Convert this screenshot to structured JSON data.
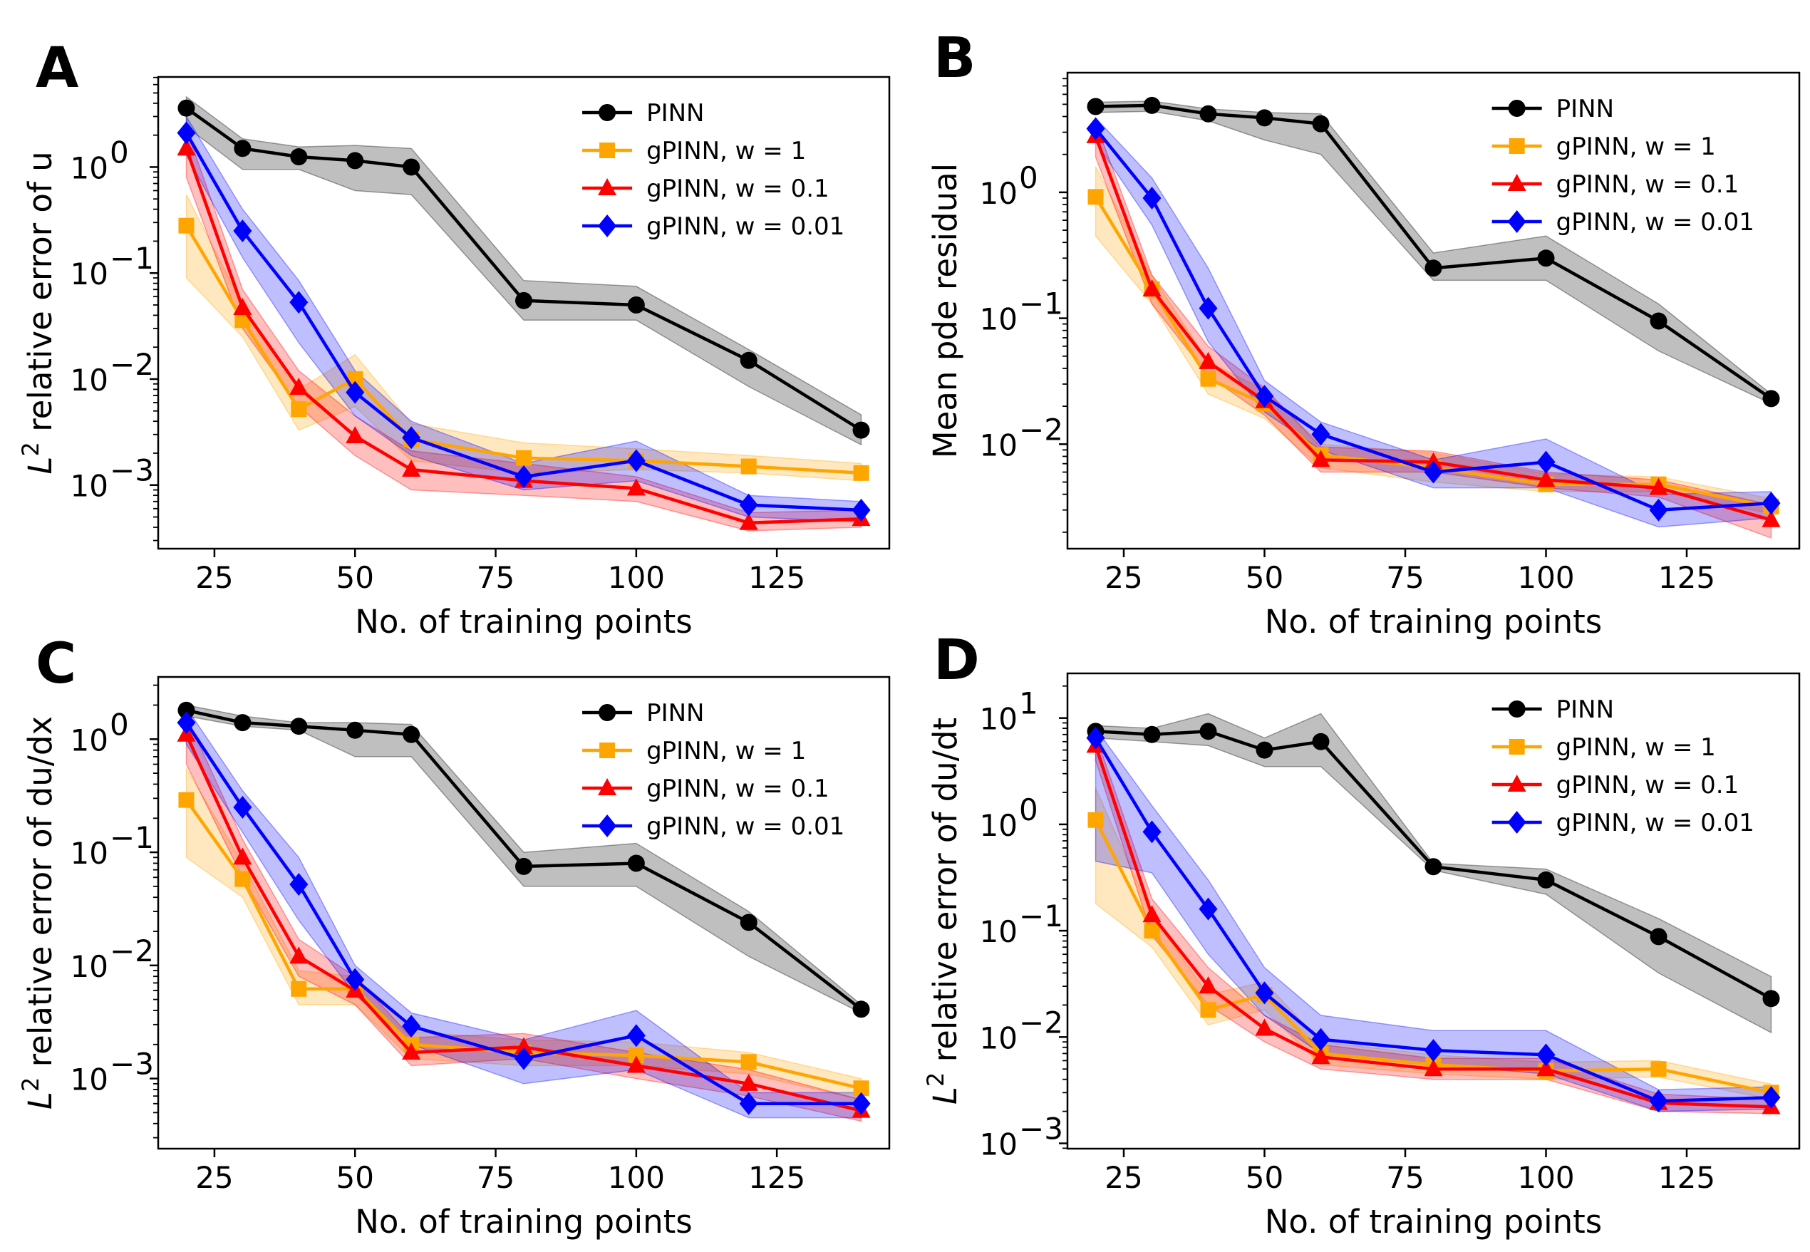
{
  "colors": {
    "PINN": "#000000",
    "gPINN, w = 1": "#ffa500",
    "gPINN, w = 0.1": "#ff0000",
    "gPINN, w = 0.01": "#0000ff"
  },
  "chart_data": [
    {
      "panel": "A",
      "type": "line",
      "yscale": "log",
      "xlabel": "No. of training points",
      "ylabel": "relative error of u",
      "ylabel_prefix": "L",
      "ylabel_sup": "2",
      "xlim": [
        15,
        145
      ],
      "ylim_log10": [
        -3.6,
        0.85
      ],
      "xticks": [
        25,
        50,
        75,
        100,
        125
      ],
      "yticks_exp": [
        -3,
        -2,
        -1,
        0
      ],
      "legend": "upper right",
      "x": [
        20,
        30,
        40,
        50,
        60,
        80,
        100,
        120,
        140
      ],
      "series": [
        {
          "name": "PINN",
          "marker": "circle",
          "values": [
            3.6,
            1.5,
            1.25,
            1.15,
            1.0,
            0.055,
            0.05,
            0.015,
            0.0033
          ],
          "lower": [
            2.4,
            0.95,
            0.95,
            0.6,
            0.55,
            0.036,
            0.036,
            0.0085,
            0.0024
          ],
          "upper": [
            4.6,
            1.85,
            1.55,
            1.6,
            1.5,
            0.085,
            0.075,
            0.019,
            0.0046
          ]
        },
        {
          "name": "gPINN, w = 1",
          "marker": "square",
          "values": [
            0.28,
            0.036,
            0.0052,
            0.01,
            0.0027,
            0.0018,
            0.0017,
            0.0015,
            0.0013
          ],
          "lower": [
            0.09,
            0.025,
            0.0033,
            0.0055,
            0.0017,
            0.0013,
            0.0014,
            0.0013,
            0.0011
          ],
          "upper": [
            0.55,
            0.05,
            0.008,
            0.017,
            0.0038,
            0.0025,
            0.0022,
            0.0019,
            0.0016
          ]
        },
        {
          "name": "gPINN, w = 0.1",
          "marker": "triangle",
          "values": [
            1.5,
            0.047,
            0.0083,
            0.0029,
            0.0014,
            0.0011,
            0.00093,
            0.00044,
            0.00048
          ],
          "lower": [
            0.8,
            0.03,
            0.0055,
            0.0019,
            0.0009,
            0.0008,
            0.0007,
            0.00037,
            0.0004
          ],
          "upper": [
            2.3,
            0.07,
            0.012,
            0.0045,
            0.0021,
            0.0016,
            0.0012,
            0.00055,
            0.00058
          ]
        },
        {
          "name": "gPINN, w = 0.01",
          "marker": "diamond",
          "values": [
            2.1,
            0.25,
            0.053,
            0.0075,
            0.0028,
            0.0012,
            0.0017,
            0.00065,
            0.00058
          ],
          "lower": [
            1.3,
            0.14,
            0.022,
            0.0045,
            0.0019,
            0.0009,
            0.0011,
            0.0005,
            0.00045
          ],
          "upper": [
            3.0,
            0.4,
            0.085,
            0.012,
            0.004,
            0.0016,
            0.0026,
            0.0008,
            0.0007
          ]
        }
      ]
    },
    {
      "panel": "B",
      "type": "line",
      "yscale": "log",
      "xlabel": "No. of training points",
      "ylabel": "Mean pde residual",
      "ylabel_prefix": "",
      "ylabel_sup": "",
      "xlim": [
        15,
        145
      ],
      "ylim_log10": [
        -2.83,
        0.95
      ],
      "xticks": [
        25,
        50,
        75,
        100,
        125
      ],
      "yticks_exp": [
        -2,
        -1,
        0
      ],
      "legend": "upper right",
      "x": [
        20,
        30,
        40,
        50,
        60,
        80,
        100,
        120,
        140
      ],
      "series": [
        {
          "name": "PINN",
          "marker": "circle",
          "values": [
            4.8,
            4.9,
            4.2,
            3.9,
            3.5,
            0.25,
            0.3,
            0.095,
            0.023
          ],
          "lower": [
            4.3,
            4.4,
            3.7,
            2.6,
            2.0,
            0.2,
            0.2,
            0.055,
            0.021
          ],
          "upper": [
            5.2,
            5.3,
            4.6,
            4.3,
            4.2,
            0.33,
            0.45,
            0.13,
            0.025
          ]
        },
        {
          "name": "gPINN, w = 1",
          "marker": "square",
          "values": [
            0.92,
            0.17,
            0.033,
            0.021,
            0.0082,
            0.0065,
            0.0048,
            0.0048,
            0.0032
          ],
          "lower": [
            0.45,
            0.13,
            0.025,
            0.016,
            0.0065,
            0.005,
            0.0042,
            0.0042,
            0.0028
          ],
          "upper": [
            1.6,
            0.22,
            0.045,
            0.027,
            0.01,
            0.0085,
            0.0058,
            0.0055,
            0.0037
          ]
        },
        {
          "name": "gPINN, w = 0.1",
          "marker": "triangle",
          "values": [
            2.8,
            0.17,
            0.045,
            0.022,
            0.0075,
            0.0072,
            0.0052,
            0.0045,
            0.0025
          ],
          "lower": [
            1.9,
            0.13,
            0.035,
            0.017,
            0.006,
            0.006,
            0.0045,
            0.0038,
            0.0018
          ],
          "upper": [
            3.6,
            0.22,
            0.06,
            0.028,
            0.0095,
            0.0088,
            0.006,
            0.0052,
            0.0033
          ]
        },
        {
          "name": "gPINN, w = 0.01",
          "marker": "diamond",
          "values": [
            3.2,
            0.9,
            0.12,
            0.024,
            0.012,
            0.006,
            0.0072,
            0.003,
            0.0034
          ],
          "lower": [
            2.5,
            0.55,
            0.065,
            0.018,
            0.009,
            0.0045,
            0.0045,
            0.0022,
            0.0026
          ],
          "upper": [
            3.9,
            1.3,
            0.25,
            0.032,
            0.015,
            0.0075,
            0.011,
            0.004,
            0.0042
          ]
        }
      ]
    },
    {
      "panel": "C",
      "type": "line",
      "yscale": "log",
      "xlabel": "No. of training points",
      "ylabel": "relative error of du/dx",
      "ylabel_prefix": "L",
      "ylabel_sup": "2",
      "xlim": [
        15,
        145
      ],
      "ylim_log10": [
        -3.62,
        0.55
      ],
      "xticks": [
        25,
        50,
        75,
        100,
        125
      ],
      "yticks_exp": [
        -3,
        -2,
        -1,
        0
      ],
      "legend": "upper right",
      "x": [
        20,
        30,
        40,
        50,
        60,
        80,
        100,
        120,
        140
      ],
      "series": [
        {
          "name": "PINN",
          "marker": "circle",
          "values": [
            1.8,
            1.4,
            1.3,
            1.2,
            1.1,
            0.075,
            0.08,
            0.024,
            0.0041
          ],
          "lower": [
            1.6,
            1.3,
            1.2,
            0.7,
            0.7,
            0.05,
            0.05,
            0.012,
            0.0038
          ],
          "upper": [
            2.0,
            1.6,
            1.4,
            1.4,
            1.35,
            0.1,
            0.12,
            0.03,
            0.0045
          ]
        },
        {
          "name": "gPINN, w = 1",
          "marker": "square",
          "values": [
            0.29,
            0.058,
            0.0062,
            0.0062,
            0.002,
            0.0017,
            0.0016,
            0.0014,
            0.00082
          ],
          "lower": [
            0.09,
            0.04,
            0.0045,
            0.0045,
            0.0015,
            0.0013,
            0.0013,
            0.0011,
            0.00065
          ],
          "upper": [
            0.55,
            0.08,
            0.009,
            0.008,
            0.0026,
            0.0022,
            0.0021,
            0.0017,
            0.001
          ]
        },
        {
          "name": "gPINN, w = 0.1",
          "marker": "triangle",
          "values": [
            1.1,
            0.09,
            0.012,
            0.006,
            0.0017,
            0.0019,
            0.0013,
            0.0009,
            0.00052
          ],
          "lower": [
            0.6,
            0.06,
            0.008,
            0.0045,
            0.0013,
            0.0015,
            0.001,
            0.0007,
            0.00042
          ],
          "upper": [
            1.6,
            0.13,
            0.017,
            0.008,
            0.0023,
            0.0025,
            0.0017,
            0.0012,
            0.00065
          ]
        },
        {
          "name": "gPINN, w = 0.01",
          "marker": "diamond",
          "values": [
            1.4,
            0.25,
            0.052,
            0.0075,
            0.0029,
            0.0015,
            0.0024,
            0.0006,
            0.0006
          ],
          "lower": [
            0.9,
            0.15,
            0.025,
            0.0055,
            0.002,
            0.0009,
            0.0012,
            0.00045,
            0.00045
          ],
          "upper": [
            1.9,
            0.35,
            0.09,
            0.01,
            0.0038,
            0.0022,
            0.004,
            0.00075,
            0.00075
          ]
        }
      ]
    },
    {
      "panel": "D",
      "type": "line",
      "yscale": "log",
      "xlabel": "No. of training points",
      "ylabel": "relative error of du/dt",
      "ylabel_prefix": "L",
      "ylabel_sup": "2",
      "xlim": [
        15,
        145
      ],
      "ylim_log10": [
        -3.05,
        1.42
      ],
      "xticks": [
        25,
        50,
        75,
        100,
        125
      ],
      "yticks_exp": [
        -3,
        -2,
        -1,
        0,
        1
      ],
      "legend": "upper right",
      "x": [
        20,
        30,
        40,
        50,
        60,
        80,
        100,
        120,
        140
      ],
      "series": [
        {
          "name": "PINN",
          "marker": "circle",
          "values": [
            7.5,
            7.0,
            7.5,
            5.0,
            6.0,
            0.4,
            0.3,
            0.088,
            0.023
          ],
          "lower": [
            6.5,
            6.0,
            5.5,
            3.5,
            3.5,
            0.37,
            0.22,
            0.04,
            0.011
          ],
          "upper": [
            8.5,
            8.0,
            11.0,
            6.5,
            11.0,
            0.43,
            0.38,
            0.13,
            0.037
          ]
        },
        {
          "name": "gPINN, w = 1",
          "marker": "square",
          "values": [
            1.1,
            0.1,
            0.018,
            0.025,
            0.007,
            0.0055,
            0.0048,
            0.005,
            0.003
          ],
          "lower": [
            0.18,
            0.07,
            0.013,
            0.018,
            0.0055,
            0.0045,
            0.004,
            0.0042,
            0.0026
          ],
          "upper": [
            2.2,
            0.14,
            0.025,
            0.033,
            0.009,
            0.0068,
            0.0058,
            0.006,
            0.0036
          ]
        },
        {
          "name": "gPINN, w = 0.1",
          "marker": "triangle",
          "values": [
            5.5,
            0.14,
            0.03,
            0.012,
            0.0065,
            0.005,
            0.005,
            0.0024,
            0.0022
          ],
          "lower": [
            4.0,
            0.09,
            0.02,
            0.009,
            0.005,
            0.004,
            0.004,
            0.002,
            0.0019
          ],
          "upper": [
            7.0,
            0.2,
            0.045,
            0.016,
            0.0085,
            0.0063,
            0.0063,
            0.0029,
            0.0026
          ]
        },
        {
          "name": "gPINN, w = 0.01",
          "marker": "diamond",
          "values": [
            6.5,
            0.85,
            0.16,
            0.026,
            0.0095,
            0.0075,
            0.0068,
            0.0025,
            0.0027
          ],
          "lower": [
            0.45,
            0.35,
            0.06,
            0.016,
            0.007,
            0.0055,
            0.0045,
            0.002,
            0.0021
          ],
          "upper": [
            8.0,
            1.5,
            0.3,
            0.045,
            0.016,
            0.0115,
            0.0115,
            0.0032,
            0.0034
          ]
        }
      ]
    }
  ]
}
